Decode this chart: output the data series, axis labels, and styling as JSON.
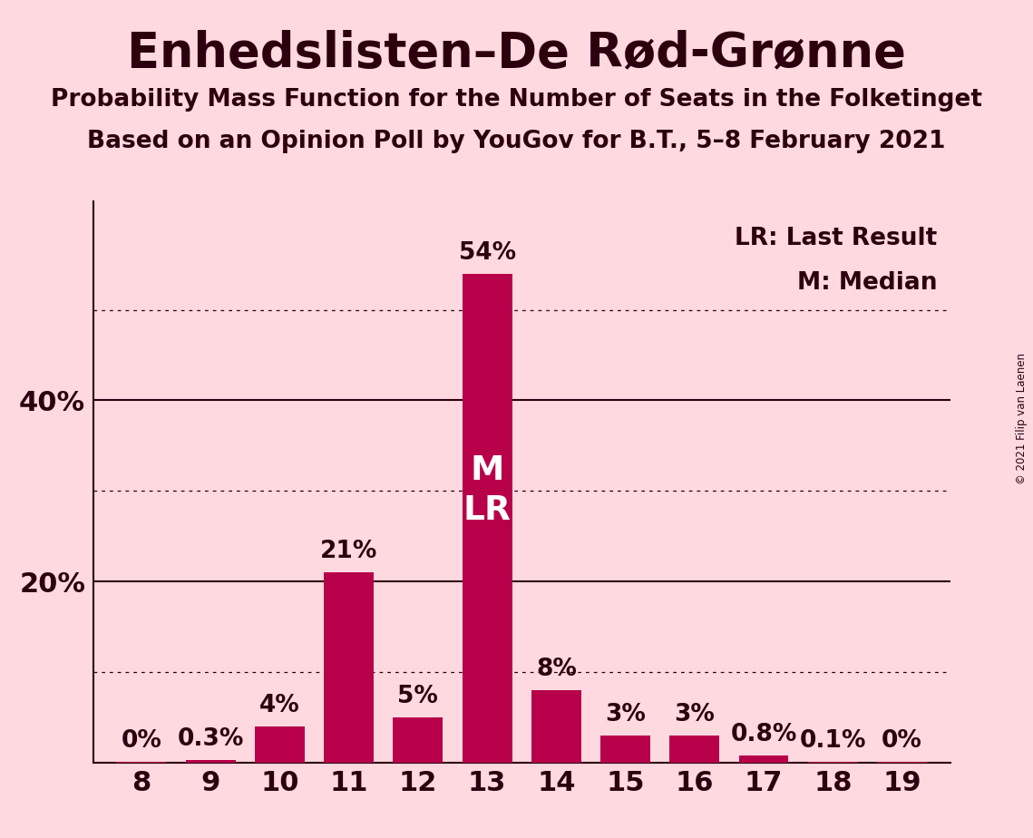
{
  "title": "Enhedslisten–De Rød-Grønne",
  "subtitle1": "Probability Mass Function for the Number of Seats in the Folketinget",
  "subtitle2": "Based on an Opinion Poll by YouGov for B.T., 5–8 February 2021",
  "copyright": "© 2021 Filip van Laenen",
  "seats": [
    8,
    9,
    10,
    11,
    12,
    13,
    14,
    15,
    16,
    17,
    18,
    19
  ],
  "values": [
    0.05,
    0.3,
    4.0,
    21.0,
    5.0,
    54.0,
    8.0,
    3.0,
    3.0,
    0.8,
    0.1,
    0.05
  ],
  "labels": [
    "0%",
    "0.3%",
    "4%",
    "21%",
    "5%",
    "54%",
    "8%",
    "3%",
    "3%",
    "0.8%",
    "0.1%",
    "0%"
  ],
  "bar_color": "#B8004A",
  "background_color": "#FFD9E0",
  "text_color": "#2D0010",
  "bar_label_fontsize": 19,
  "title_fontsize": 38,
  "subtitle_fontsize": 19,
  "median_seat": 13,
  "ylim": [
    0,
    62
  ],
  "dotted_yticks": [
    10,
    30,
    50
  ],
  "solid_yticks": [
    20,
    40
  ],
  "legend_lr": "LR: Last Result",
  "legend_m": "M: Median"
}
